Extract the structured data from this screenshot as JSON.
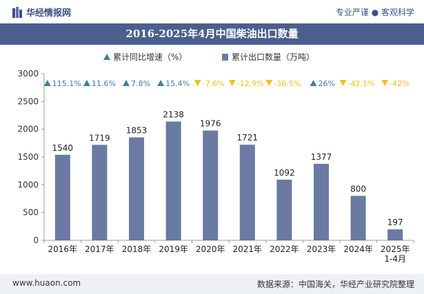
{
  "header": {
    "brand": "华经情报网",
    "slogan": "专业严谨 ● 客观科学"
  },
  "title": "2016-2025年4月中国柴油出口数量",
  "footer": {
    "url": "www.huaon.com",
    "source": "数据来源：中国海关，华经产业研究院整理"
  },
  "colors": {
    "bar": "#6b7aa3",
    "up": "#3d7f9e",
    "down": "#f2c21b",
    "title_bg": "#4b5f8f"
  },
  "chart_data": {
    "type": "bar",
    "categories": [
      "2016年",
      "2017年",
      "2018年",
      "2019年",
      "2020年",
      "2021年",
      "2022年",
      "2023年",
      "2024年",
      "2025年\n1-4月"
    ],
    "ylim": [
      0,
      3000
    ],
    "yticks": [
      0,
      500,
      1000,
      1500,
      2000,
      2500,
      3000
    ],
    "grid": false,
    "legend_position": "top",
    "series": [
      {
        "name": "累计出口数量（万吨）",
        "values": [
          1540,
          1719,
          1853,
          2138,
          1976,
          1721,
          1092,
          1377,
          800,
          197
        ],
        "labels": [
          "1540",
          "1719",
          "1853",
          "2138",
          "1976",
          "1721",
          "1092",
          "1377",
          "800",
          "197"
        ]
      },
      {
        "name": "累计同比增速（%）",
        "values": [
          115.1,
          11.6,
          7.8,
          15.4,
          -7.6,
          -12.9,
          -36.5,
          26,
          -42.1,
          -42
        ],
        "labels": [
          "115.1%",
          "11.6%",
          "7.8%",
          "15.4%",
          "-7.6%",
          "-12.9%",
          "-36.5%",
          "26%",
          "-42.1%",
          "-42%"
        ]
      }
    ]
  }
}
